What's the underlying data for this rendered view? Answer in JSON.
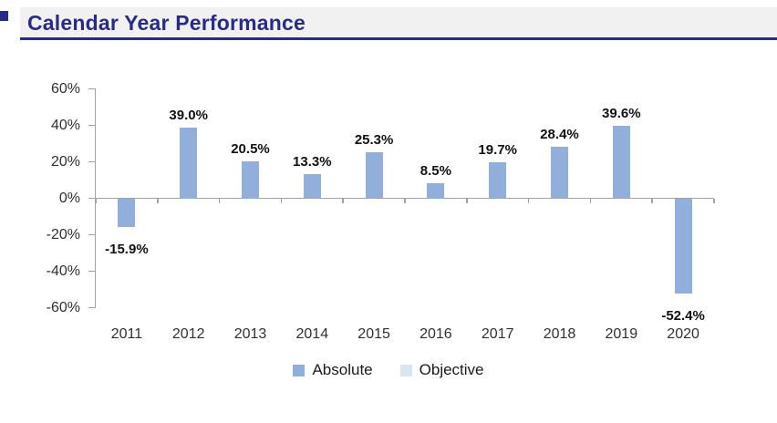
{
  "header": {
    "title": "Calendar Year Performance"
  },
  "colors": {
    "title_navy": "#262c87",
    "header_background": "#f1f1f2",
    "underline_navy": "#262c87",
    "axis_gray": "#a3a3a3",
    "bar_blue": "#92afdc",
    "objective_light_blue": "#dbe5f1",
    "label_black": "#121212"
  },
  "chart_data": {
    "type": "bar",
    "title": "Calendar Year Performance",
    "xlabel": "",
    "ylabel": "",
    "categories": [
      "2011",
      "2012",
      "2013",
      "2014",
      "2015",
      "2016",
      "2017",
      "2018",
      "2019",
      "2020"
    ],
    "series": [
      {
        "name": "Absolute",
        "color": "#92afdc",
        "values": [
          -15.9,
          39.0,
          20.5,
          13.3,
          25.3,
          8.5,
          19.7,
          28.4,
          39.6,
          -52.4
        ]
      }
    ],
    "value_labels": [
      "-15.9%",
      "39.0%",
      "20.5%",
      "13.3%",
      "25.3%",
      "8.5%",
      "19.7%",
      "28.4%",
      "39.6%",
      "-52.4%"
    ],
    "ylim": [
      -60,
      60
    ],
    "yticks": [
      {
        "value": 60,
        "label": "60%"
      },
      {
        "value": 40,
        "label": "40%"
      },
      {
        "value": 20,
        "label": "20%"
      },
      {
        "value": 0,
        "label": "0%"
      },
      {
        "value": -20,
        "label": "-20%"
      },
      {
        "value": -40,
        "label": "-40%"
      },
      {
        "value": -60,
        "label": "-60%"
      }
    ],
    "grid": false,
    "legend_position": "bottom",
    "legend": [
      {
        "label": "Absolute",
        "color": "#92afdc"
      },
      {
        "label": "Objective",
        "color": "#dbe5f1"
      }
    ]
  }
}
